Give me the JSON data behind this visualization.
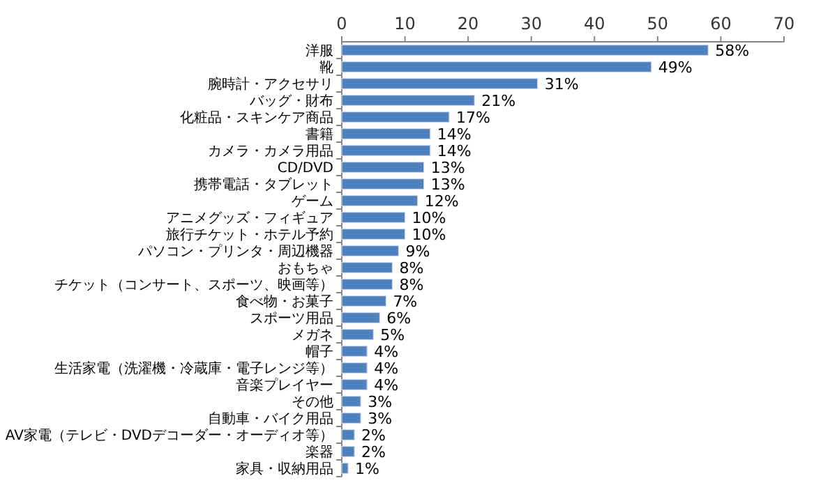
{
  "chart_data": {
    "type": "bar",
    "orientation": "horizontal",
    "categories": [
      "洋服",
      "靴",
      "腕時計・アクセサリ",
      "バッグ・財布",
      "化粧品・スキンケア商品",
      "書籍",
      "カメラ・カメラ用品",
      "CD/DVD",
      "携帯電話・タブレット",
      "ゲーム",
      "アニメグッズ・フィギュア",
      "旅行チケット・ホテル予約",
      "パソコン・プリンタ・周辺機器",
      "おもちゃ",
      "チケット（コンサート、スポーツ、映画等）",
      "食べ物・お菓子",
      "スポーツ用品",
      "メガネ",
      "帽子",
      "生活家電（洗濯機・冷蔵庫・電子レンジ等）",
      "音楽プレイヤー",
      "その他",
      "自動車・バイク用品",
      "AV家電（テレビ・DVDデコーダー・オーディオ等）",
      "楽器",
      "家具・収納用品"
    ],
    "values": [
      58,
      49,
      31,
      21,
      17,
      14,
      14,
      13,
      13,
      12,
      10,
      10,
      9,
      8,
      8,
      7,
      6,
      5,
      4,
      4,
      4,
      3,
      3,
      2,
      2,
      1
    ],
    "value_labels": [
      "58%",
      "49%",
      "31%",
      "21%",
      "17%",
      "14%",
      "14%",
      "13%",
      "13%",
      "12%",
      "10%",
      "10%",
      "9%",
      "8%",
      "8%",
      "7%",
      "6%",
      "5%",
      "4%",
      "4%",
      "4%",
      "3%",
      "3%",
      "2%",
      "2%",
      "1%"
    ],
    "color": "#4f81bd",
    "xlim": [
      0,
      70
    ],
    "xticks": [
      0,
      10,
      20,
      30,
      40,
      50,
      60,
      70
    ]
  }
}
